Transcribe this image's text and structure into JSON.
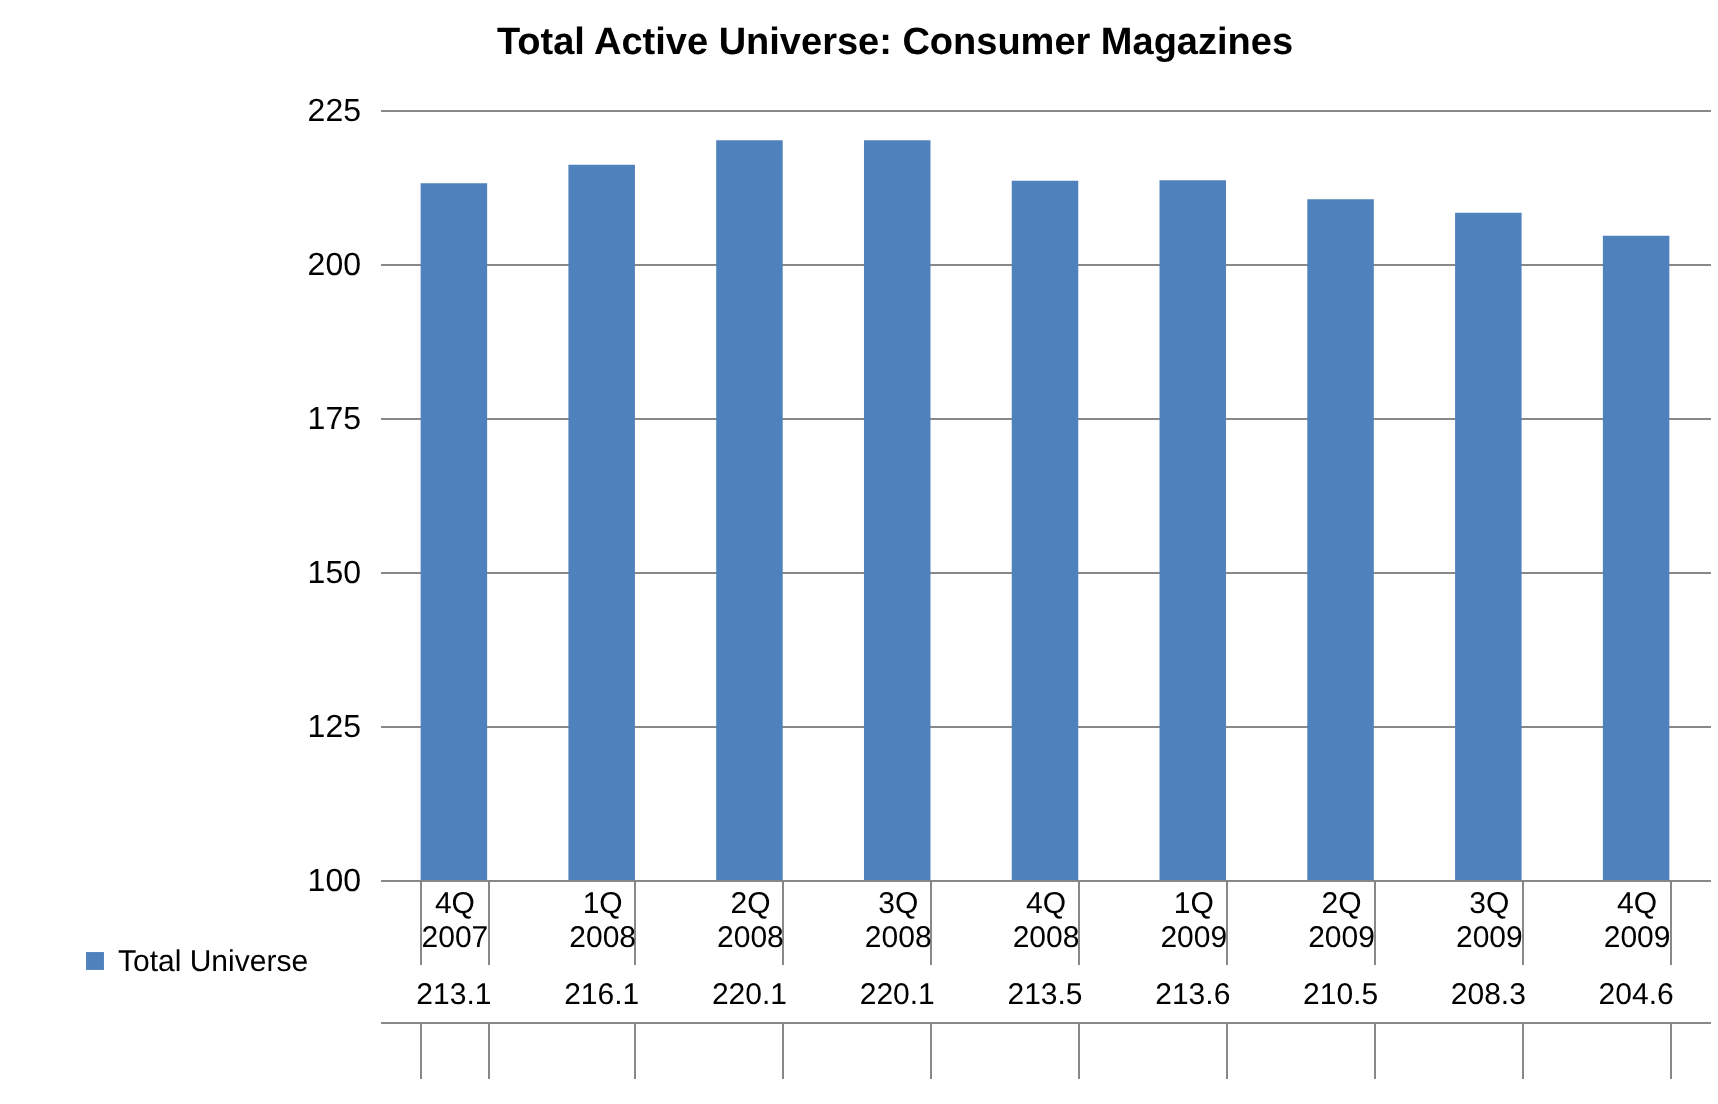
{
  "chart_data": {
    "type": "bar",
    "title": "Total Active Universe:  Consumer Magazines",
    "categories": [
      "4Q 2007",
      "1Q 2008",
      "2Q 2008",
      "3Q 2008",
      "4Q 2008",
      "1Q 2009",
      "2Q 2009",
      "3Q 2009",
      "4Q 2009"
    ],
    "series": [
      {
        "name": "Total Universe",
        "color": "#4f81bd",
        "values": [
          213.1,
          216.1,
          220.1,
          220.1,
          213.5,
          213.6,
          210.5,
          208.3,
          204.6
        ]
      }
    ],
    "ylim": [
      100,
      225
    ],
    "yticks": [
      100,
      125,
      150,
      175,
      200,
      225
    ],
    "grid": "y",
    "legend": "bottom left",
    "data_labels": true
  }
}
